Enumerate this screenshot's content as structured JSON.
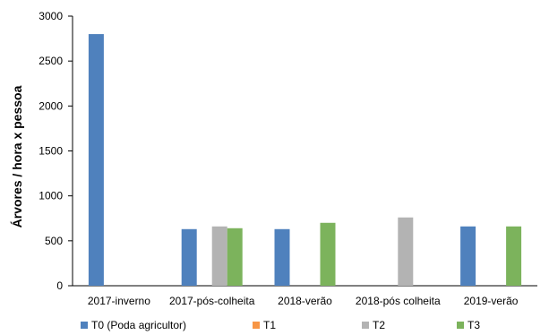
{
  "chart_data": {
    "type": "bar",
    "title": "",
    "xlabel": "",
    "ylabel": "Árvores / hora x pessoa",
    "ylim": [
      0,
      3000
    ],
    "yticks": [
      0,
      500,
      1000,
      1500,
      2000,
      2500,
      3000
    ],
    "categories": [
      "2017-inverno",
      "2017-pós-colheita",
      "2018-verão",
      "2018-pós colheita",
      "2019-verão"
    ],
    "series": [
      {
        "name": "T0 (Poda agricultor)",
        "color": "#4f81bd",
        "values": [
          2800,
          630,
          630,
          null,
          660
        ]
      },
      {
        "name": "T1",
        "color": "#f79646",
        "values": [
          null,
          null,
          null,
          null,
          null
        ]
      },
      {
        "name": "T2",
        "color": "#b3b3b3",
        "values": [
          null,
          660,
          null,
          760,
          null
        ]
      },
      {
        "name": "T3",
        "color": "#7cb35c",
        "values": [
          null,
          640,
          700,
          null,
          660
        ]
      }
    ],
    "grid": false,
    "legend_position": "bottom"
  }
}
